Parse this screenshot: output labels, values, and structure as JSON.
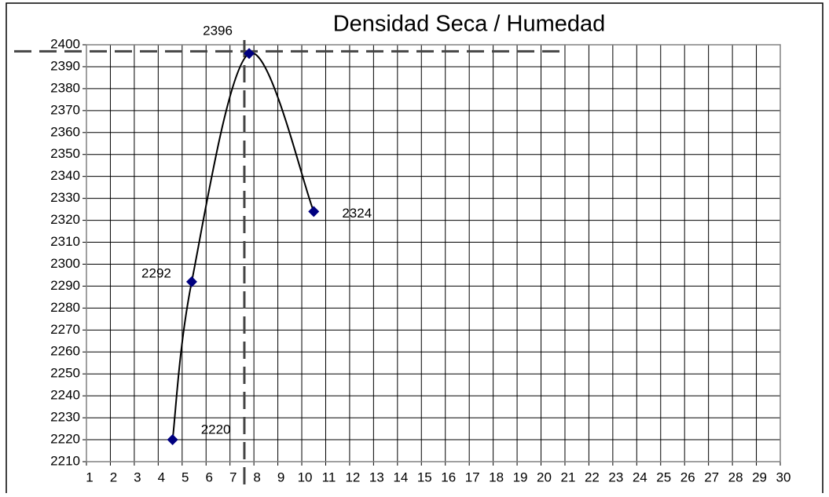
{
  "chart_data": {
    "type": "scatter",
    "title": "Densidad Seca / Humedad",
    "series": [
      {
        "color": "#000080",
        "line_color": "#000000",
        "smooth": true,
        "x": [
          4.6,
          5.4,
          7.8,
          10.5
        ],
        "values": [
          2220,
          2292,
          2396,
          2324
        ]
      }
    ],
    "xlim": [
      1,
      30
    ],
    "xticks": [
      1,
      2,
      3,
      4,
      5,
      6,
      7,
      8,
      9,
      10,
      11,
      12,
      13,
      14,
      15,
      16,
      17,
      18,
      19,
      20,
      21,
      22,
      23,
      24,
      25,
      26,
      27,
      28,
      29,
      30
    ],
    "ylim": [
      2210,
      2400
    ],
    "yticks": [
      2210,
      2220,
      2230,
      2240,
      2250,
      2260,
      2270,
      2280,
      2290,
      2300,
      2310,
      2320,
      2330,
      2340,
      2350,
      2360,
      2370,
      2380,
      2390,
      2400
    ],
    "grid": true,
    "vline": 7.6,
    "hline": {
      "y": 2397,
      "xmax": 21
    }
  }
}
